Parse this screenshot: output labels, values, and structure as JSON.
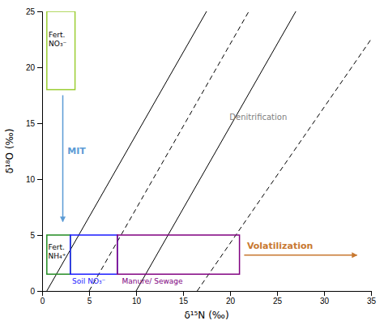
{
  "chart_data": {
    "type": "diagram",
    "x_label": "δ¹⁵N (‰)",
    "y_label": "δ¹⁸O (‰)",
    "xlim": [
      0,
      35
    ],
    "ylim": [
      0,
      25
    ],
    "xticks": [
      0,
      5,
      10,
      15,
      20,
      25,
      30,
      35
    ],
    "yticks": [
      0,
      5,
      10,
      15,
      20,
      25
    ],
    "lines": [
      {
        "x": [
          0.5,
          17.5
        ],
        "y": [
          0,
          25
        ],
        "line_style": "solid"
      },
      {
        "x": [
          5.0,
          22.0
        ],
        "y": [
          0,
          25
        ],
        "line_style": "dashed"
      },
      {
        "x": [
          10.0,
          27.0
        ],
        "y": [
          0,
          25
        ],
        "line_style": "solid"
      },
      {
        "x": [
          16.5,
          35.0
        ],
        "y": [
          0,
          22.5
        ],
        "line_style": "dashed"
      }
    ],
    "annotations": [
      {
        "text": "Denitrification",
        "x": 23,
        "y": 15.5
      }
    ],
    "boxes": [
      {
        "name": "Fert.\nNO₃⁻",
        "x": [
          0.5,
          3.5
        ],
        "y": [
          18,
          25
        ],
        "color": "#9acd32",
        "label_color": "black",
        "label_x": 0.7,
        "label_y": 22.5
      },
      {
        "name": "Fert.\nNH₄⁺",
        "x": [
          0.5,
          3.0
        ],
        "y": [
          1.5,
          5.0
        ],
        "color": "#228B22",
        "label_color": "black",
        "label_x": 0.65,
        "label_y": 3.5
      },
      {
        "name": "Soil NO₃⁻",
        "x": [
          3.0,
          8.0
        ],
        "y": [
          1.5,
          5.0
        ],
        "color": "#1a1aff",
        "label_color": "#1a1aff",
        "label_x": 3.2,
        "label_y": 1.1
      },
      {
        "name": "Manure/ Sewage",
        "x": [
          8.0,
          21.0
        ],
        "y": [
          1.5,
          5.0
        ],
        "color": "#800080",
        "label_color": "#800080",
        "label_x": 8.5,
        "label_y": 1.1
      }
    ],
    "arrows": [
      {
        "name": "MIT",
        "x": [
          2.2,
          2.2
        ],
        "y": [
          17.5,
          6.2
        ],
        "color": "#5b9bd5",
        "label_x": 2.7,
        "label_y": 12.5
      },
      {
        "name": "Volatilization",
        "x": [
          21.5,
          33.5
        ],
        "y": [
          3.2,
          3.2
        ],
        "color": "#c87830",
        "label_x": 21.8,
        "label_y": 3.8
      }
    ]
  }
}
